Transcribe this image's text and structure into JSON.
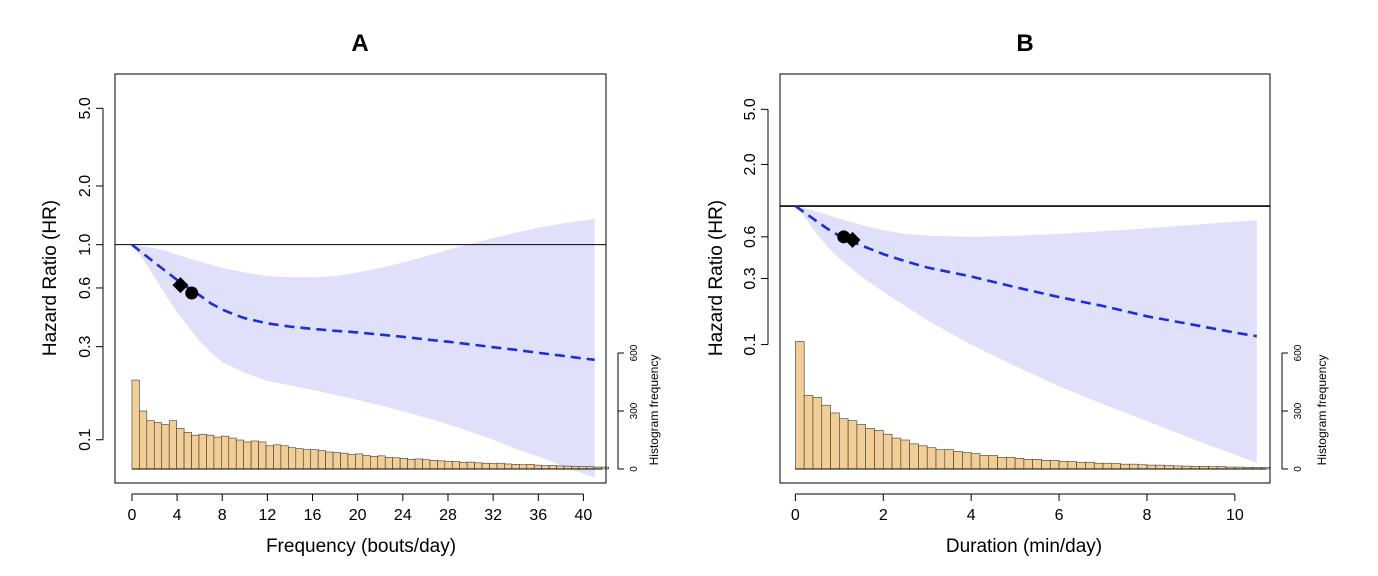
{
  "chart_data": [
    {
      "type": "line",
      "panel": "A",
      "title": "A",
      "xlabel": "Frequency (bouts/day)",
      "ylabel": "Hazard Ratio (HR)",
      "y_scale": "log",
      "xlim": [
        -1.5,
        42
      ],
      "ylim": [
        0.06,
        7.5
      ],
      "x_ticks": [
        0,
        4,
        8,
        12,
        16,
        20,
        24,
        28,
        32,
        36,
        40
      ],
      "x_tick_labels": [
        "0",
        "4",
        "8",
        "12",
        "16",
        "20",
        "24",
        "28",
        "32",
        "36",
        "40"
      ],
      "y_ticks": [
        0.1,
        0.3,
        0.6,
        1.0,
        2.0,
        5.0
      ],
      "y_tick_labels": [
        "0.1",
        "0.3",
        "0.6",
        "1.0",
        "2.0",
        "5.0"
      ],
      "reference_line": 1.0,
      "hr_curve": {
        "x": [
          0,
          1,
          2,
          3,
          4,
          5,
          6,
          7,
          8,
          9,
          10,
          12,
          14,
          16,
          18,
          20,
          22,
          24,
          26,
          28,
          30,
          32,
          34,
          36,
          38,
          40,
          41
        ],
        "hr": [
          1.0,
          0.9,
          0.81,
          0.73,
          0.66,
          0.6,
          0.55,
          0.5,
          0.465,
          0.44,
          0.42,
          0.395,
          0.38,
          0.37,
          0.362,
          0.355,
          0.346,
          0.337,
          0.327,
          0.318,
          0.308,
          0.298,
          0.289,
          0.279,
          0.27,
          0.261,
          0.257
        ]
      },
      "confidence_band": {
        "x": [
          0,
          1,
          2,
          3,
          4,
          5,
          6,
          7,
          8,
          10,
          12,
          14,
          16,
          18,
          20,
          22,
          24,
          26,
          28,
          30,
          32,
          34,
          36,
          38,
          40,
          41
        ],
        "lower": [
          1.0,
          0.84,
          0.68,
          0.55,
          0.45,
          0.38,
          0.32,
          0.28,
          0.25,
          0.22,
          0.2,
          0.19,
          0.18,
          0.17,
          0.16,
          0.15,
          0.14,
          0.13,
          0.12,
          0.11,
          0.1,
          0.09,
          0.082,
          0.074,
          0.067,
          0.064
        ],
        "upper": [
          1.0,
          0.98,
          0.96,
          0.93,
          0.89,
          0.85,
          0.82,
          0.79,
          0.76,
          0.72,
          0.69,
          0.68,
          0.68,
          0.69,
          0.72,
          0.76,
          0.81,
          0.87,
          0.94,
          1.01,
          1.08,
          1.15,
          1.22,
          1.28,
          1.33,
          1.36
        ]
      },
      "markers": [
        {
          "shape": "diamond",
          "x": 4.3,
          "hr": 0.62
        },
        {
          "shape": "circle",
          "x": 5.3,
          "hr": 0.565
        }
      ],
      "histogram": {
        "bin_width": 0.66,
        "x_start": 0,
        "counts": [
          460,
          300,
          250,
          240,
          230,
          250,
          210,
          190,
          175,
          180,
          175,
          165,
          170,
          160,
          150,
          140,
          145,
          140,
          120,
          125,
          120,
          110,
          105,
          100,
          100,
          95,
          88,
          85,
          82,
          75,
          78,
          70,
          65,
          68,
          60,
          58,
          55,
          50,
          52,
          48,
          45,
          42,
          40,
          38,
          35,
          36,
          32,
          30,
          28,
          30,
          26,
          24,
          22,
          24,
          20,
          18,
          18,
          16,
          15,
          14,
          12,
          12,
          10,
          10
        ],
        "ylim": [
          0,
          600
        ],
        "y_ticks": [
          0,
          300,
          600
        ],
        "y_tick_labels": [
          "0",
          "300",
          "600"
        ],
        "ylabel": "Histogram frequency"
      }
    },
    {
      "type": "line",
      "panel": "B",
      "title": "B",
      "xlabel": "Duration (min/day)",
      "ylabel": "Hazard Ratio (HR)",
      "y_scale": "log",
      "xlim": [
        -0.35,
        10.8
      ],
      "ylim": [
        0.01,
        9.0
      ],
      "x_ticks": [
        0,
        2,
        4,
        6,
        8,
        10
      ],
      "x_tick_labels": [
        "0",
        "2",
        "4",
        "6",
        "8",
        "10"
      ],
      "y_ticks": [
        0.1,
        0.3,
        0.6,
        2.0,
        5.0
      ],
      "y_tick_labels": [
        "0.1",
        "0.3",
        "0.6",
        "2.0",
        "5.0"
      ],
      "reference_line": 1.0,
      "hr_curve": {
        "x": [
          0,
          0.25,
          0.5,
          0.75,
          1.0,
          1.25,
          1.5,
          2.0,
          2.5,
          3.0,
          4.0,
          5.0,
          6.0,
          7.0,
          8.0,
          9.0,
          10.0,
          10.5
        ],
        "hr": [
          1.0,
          0.88,
          0.77,
          0.68,
          0.61,
          0.56,
          0.52,
          0.45,
          0.4,
          0.36,
          0.31,
          0.26,
          0.22,
          0.19,
          0.16,
          0.14,
          0.122,
          0.115
        ]
      },
      "confidence_band": {
        "x": [
          0,
          0.25,
          0.5,
          0.75,
          1.0,
          1.25,
          1.5,
          2.0,
          2.5,
          3.0,
          4.0,
          5.0,
          6.0,
          7.0,
          8.0,
          9.0,
          10.0,
          10.5
        ],
        "lower": [
          1.0,
          0.8,
          0.62,
          0.5,
          0.42,
          0.36,
          0.31,
          0.24,
          0.19,
          0.15,
          0.1,
          0.07,
          0.05,
          0.037,
          0.028,
          0.021,
          0.016,
          0.014
        ],
        "upper": [
          1.0,
          0.96,
          0.91,
          0.86,
          0.81,
          0.77,
          0.73,
          0.67,
          0.63,
          0.61,
          0.6,
          0.61,
          0.63,
          0.66,
          0.69,
          0.73,
          0.77,
          0.79
        ]
      },
      "markers": [
        {
          "shape": "circle",
          "x": 1.1,
          "hr": 0.6
        },
        {
          "shape": "diamond",
          "x": 1.3,
          "hr": 0.57
        }
      ],
      "histogram": {
        "bin_width": 0.2,
        "x_start": 0,
        "counts": [
          660,
          380,
          370,
          330,
          290,
          260,
          250,
          230,
          210,
          200,
          180,
          160,
          150,
          130,
          120,
          110,
          100,
          100,
          90,
          85,
          80,
          70,
          70,
          60,
          60,
          55,
          50,
          50,
          45,
          45,
          40,
          38,
          35,
          35,
          30,
          30,
          28,
          25,
          25,
          22,
          20,
          20,
          18,
          16,
          15,
          14,
          14,
          12,
          12,
          10,
          10,
          9,
          8,
          8
        ],
        "ylim": [
          0,
          600
        ],
        "y_ticks": [
          0,
          300,
          600
        ],
        "y_tick_labels": [
          "0",
          "300",
          "600"
        ],
        "ylabel": "Histogram frequency"
      }
    }
  ]
}
